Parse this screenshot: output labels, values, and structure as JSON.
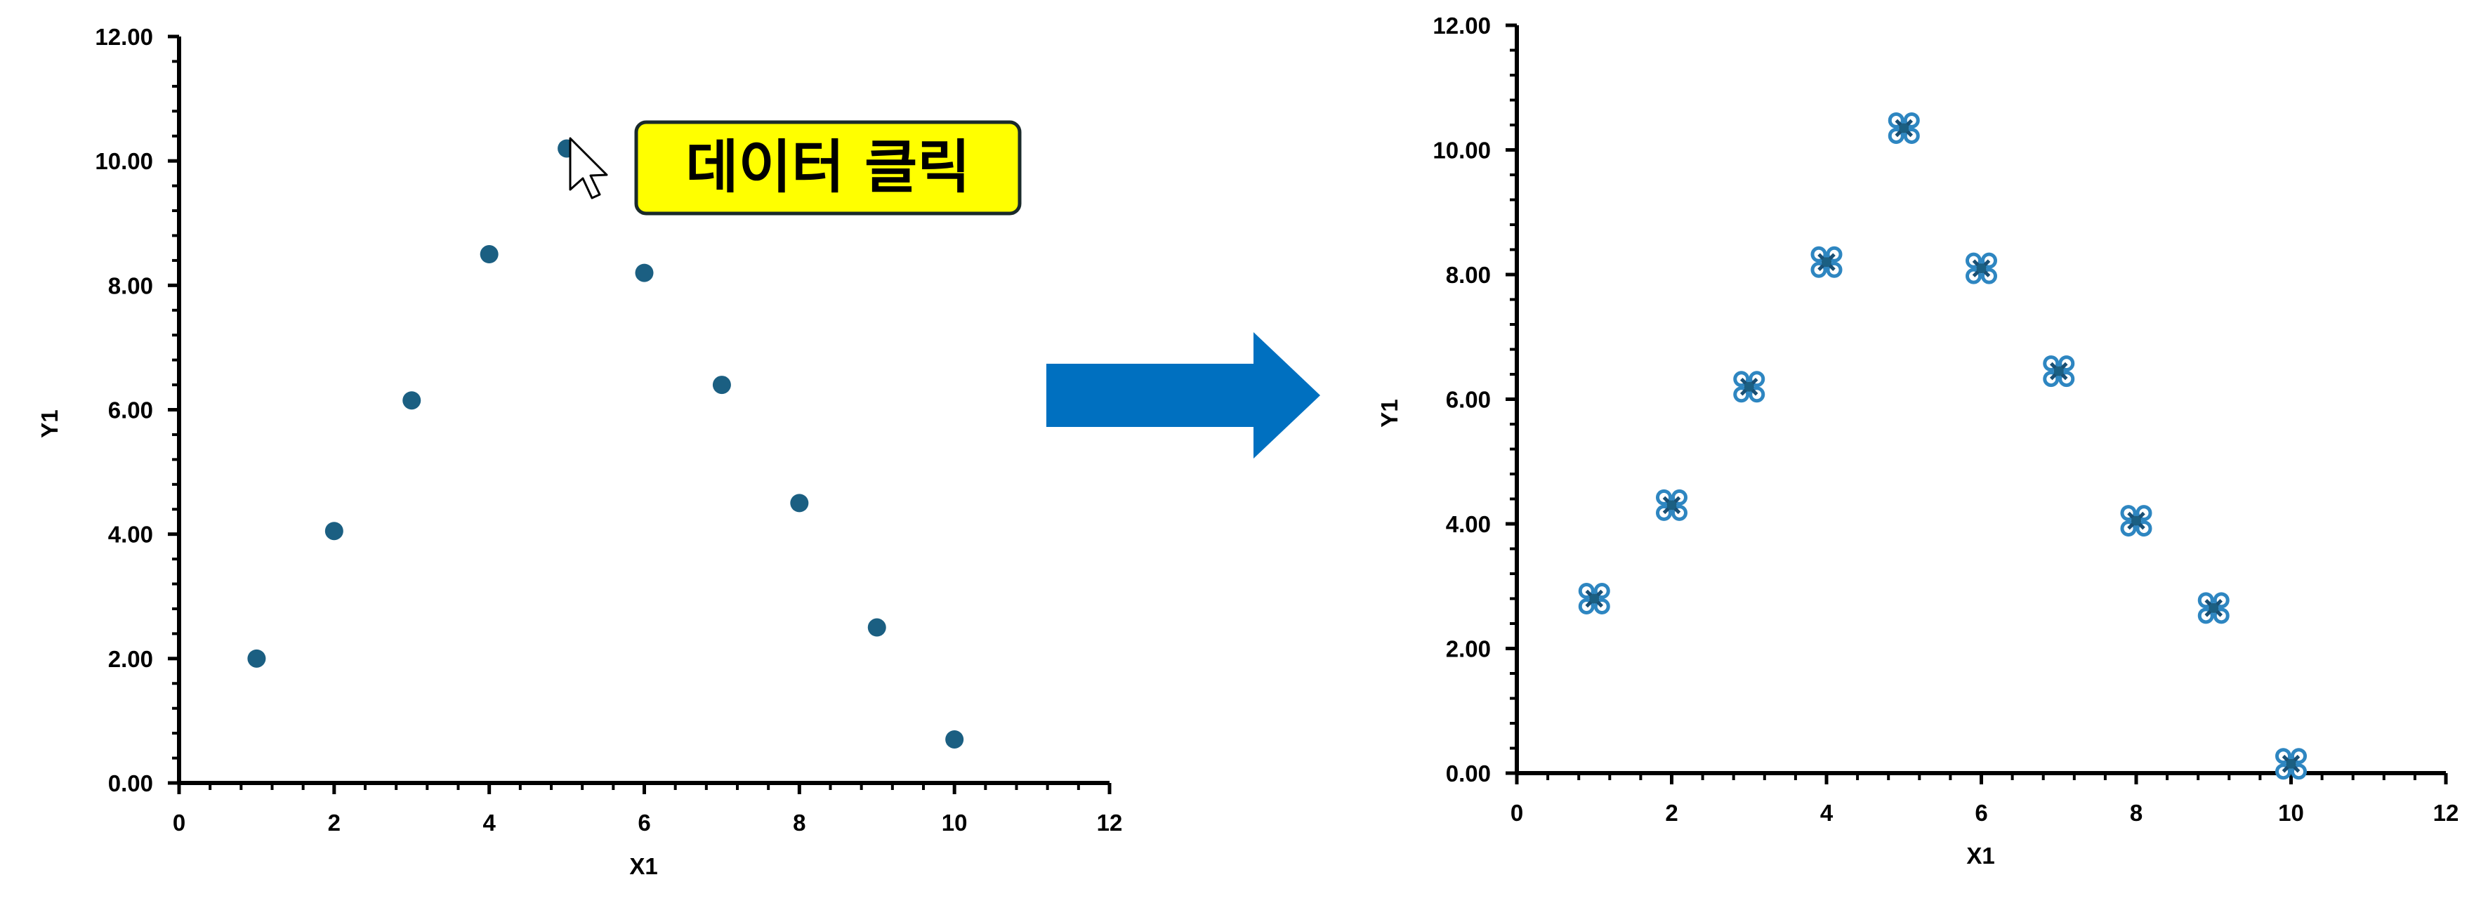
{
  "callout": {
    "text": "데이터 클릭",
    "fill": "#ffff00",
    "border": "#1a2a2a"
  },
  "arrow_color": "#0070c0",
  "chart_data": [
    {
      "type": "scatter",
      "title": "",
      "xlabel": "X1",
      "ylabel": "Y1",
      "xlim": [
        0,
        12
      ],
      "ylim": [
        0,
        12
      ],
      "x_ticks": [
        "0",
        "2",
        "4",
        "6",
        "8",
        "10",
        "12"
      ],
      "y_ticks": [
        "0.00",
        "2.00",
        "4.00",
        "6.00",
        "8.00",
        "10.00",
        "12.00"
      ],
      "grid": false,
      "legend": "none",
      "marker": "circle",
      "marker_color": "#1b5f82",
      "series": [
        {
          "x": [
            1,
            2,
            3,
            4,
            5,
            6,
            7,
            8,
            9,
            10
          ],
          "y": [
            2.0,
            4.05,
            6.15,
            8.5,
            10.2,
            8.2,
            6.4,
            4.5,
            2.5,
            0.7
          ]
        }
      ]
    },
    {
      "type": "scatter",
      "title": "",
      "xlabel": "X1",
      "ylabel": "Y1",
      "xlim": [
        0,
        12
      ],
      "ylim": [
        0,
        12
      ],
      "x_ticks": [
        "0",
        "2",
        "4",
        "6",
        "8",
        "10",
        "12"
      ],
      "y_ticks": [
        "0.00",
        "2.00",
        "4.00",
        "6.00",
        "8.00",
        "10.00",
        "12.00"
      ],
      "grid": false,
      "legend": "none",
      "marker": "selected-point",
      "marker_color": "#2e86c1",
      "series": [
        {
          "x": [
            1,
            2,
            3,
            4,
            5,
            6,
            7,
            8,
            9,
            10
          ],
          "y": [
            2.8,
            4.3,
            6.2,
            8.2,
            10.35,
            8.1,
            6.45,
            4.05,
            2.65,
            0.15
          ]
        }
      ]
    }
  ]
}
